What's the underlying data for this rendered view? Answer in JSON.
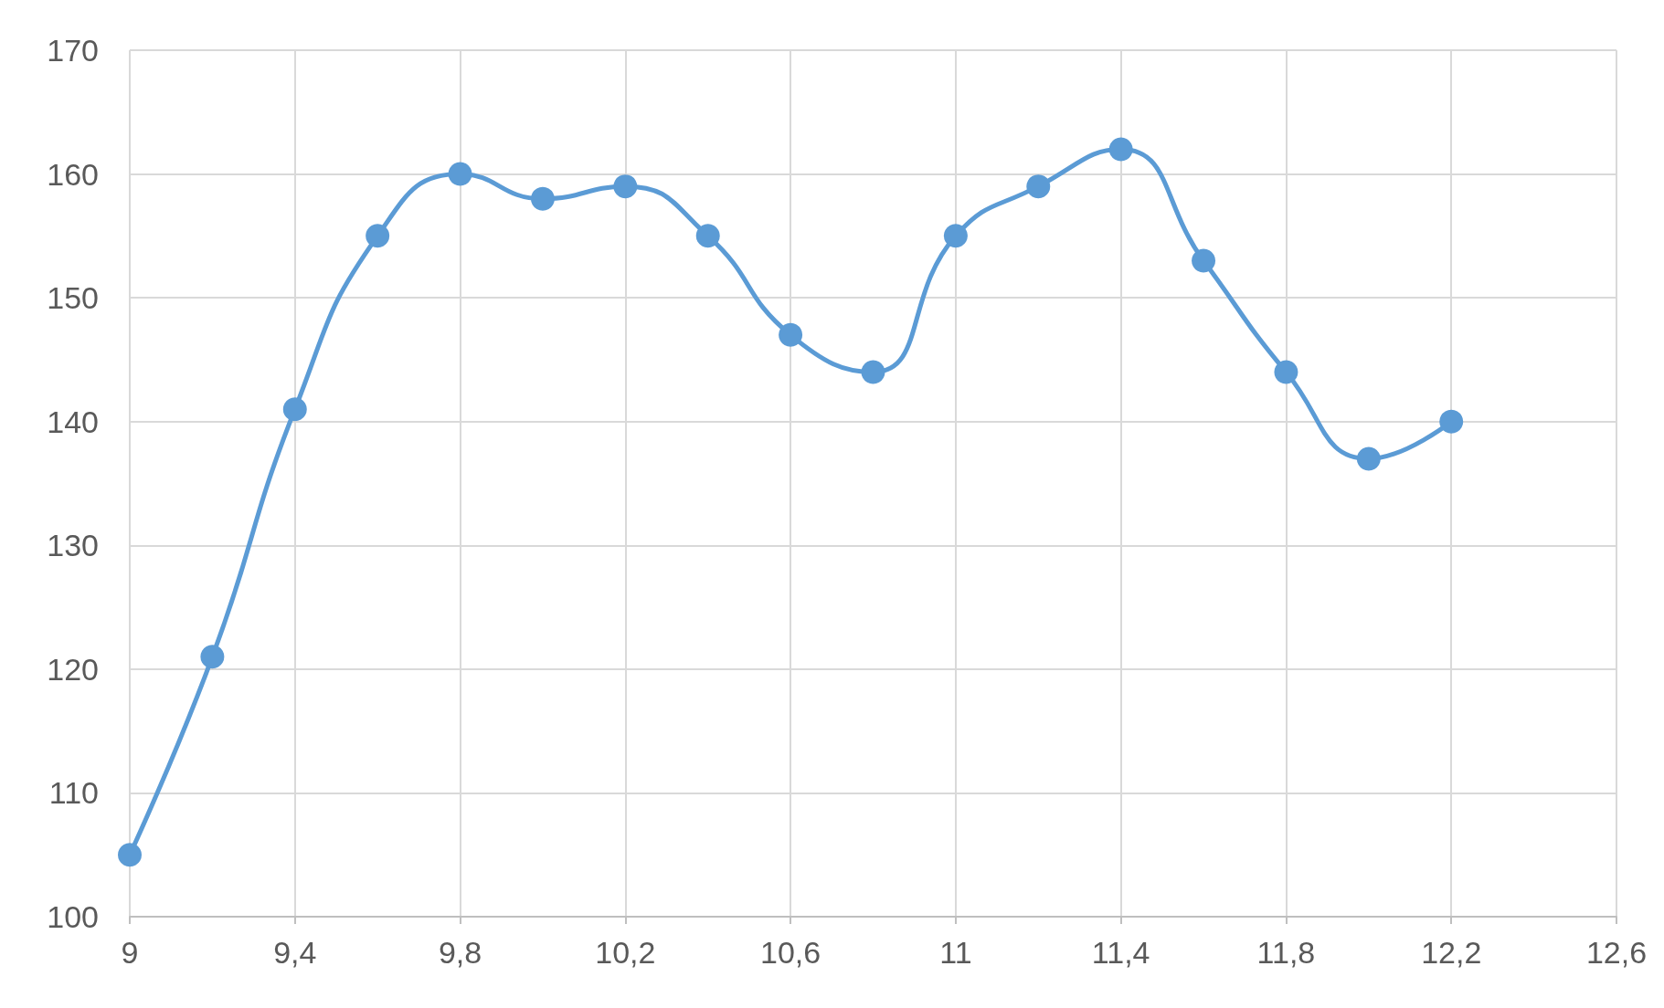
{
  "chart_data": {
    "type": "line",
    "x": [
      9,
      9.2,
      9.4,
      9.6,
      9.8,
      10,
      10.2,
      10.4,
      10.6,
      10.8,
      11,
      11.2,
      11.4,
      11.6,
      11.8,
      12,
      12.2
    ],
    "series": [
      {
        "color": "#5b9bd5",
        "values": [
          105,
          121,
          141,
          155,
          160,
          158,
          159,
          155,
          147,
          144,
          155,
          159,
          162,
          153,
          144,
          137,
          140
        ]
      }
    ],
    "xlim": [
      9,
      12.6
    ],
    "xticks": [
      9,
      {
        "value": 9.4,
        "label": "9,4"
      },
      {
        "value": 9.8,
        "label": "9,8"
      },
      {
        "value": 10.2,
        "label": "10,2"
      },
      {
        "value": 10.6,
        "label": "10,6"
      },
      11,
      {
        "value": 11.4,
        "label": "11,4"
      },
      {
        "value": 11.8,
        "label": "11,8"
      },
      {
        "value": 12.2,
        "label": "12,2"
      },
      {
        "value": 12.6,
        "label": "12,6"
      }
    ],
    "ylim": [
      100,
      170
    ],
    "yticks": [
      100,
      110,
      120,
      130,
      140,
      150,
      160,
      170
    ],
    "grid": true,
    "marker": "circle",
    "line_style": "solid"
  }
}
